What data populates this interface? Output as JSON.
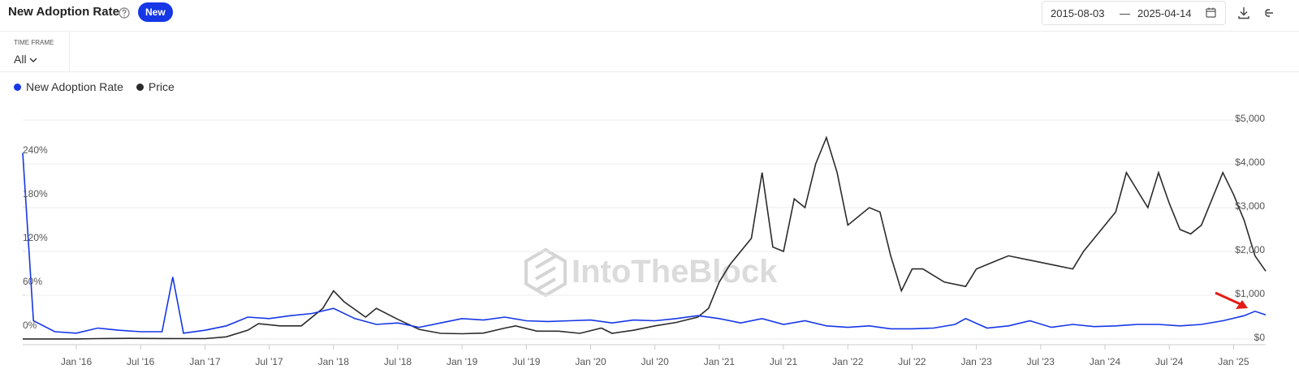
{
  "header": {
    "title": "New Adoption Rate",
    "badge": "New",
    "date_start": "2015-08-03",
    "date_end": "2025-04-14",
    "date_separator": "—",
    "timeframe_label": "TIME FRAME",
    "timeframe_value": "All"
  },
  "chart_data": {
    "type": "line",
    "watermark": "IntoTheBlock",
    "xlim": [
      "2015-08",
      "2025-04"
    ],
    "xticks": [
      {
        "value": "2016-01",
        "label": "Jan '16"
      },
      {
        "value": "2016-07",
        "label": "Jul '16"
      },
      {
        "value": "2017-01",
        "label": "Jan '17"
      },
      {
        "value": "2017-07",
        "label": "Jul '17"
      },
      {
        "value": "2018-01",
        "label": "Jan '18"
      },
      {
        "value": "2018-07",
        "label": "Jul '18"
      },
      {
        "value": "2019-01",
        "label": "Jan '19"
      },
      {
        "value": "2019-07",
        "label": "Jul '19"
      },
      {
        "value": "2020-01",
        "label": "Jan '20"
      },
      {
        "value": "2020-07",
        "label": "Jul '20"
      },
      {
        "value": "2021-01",
        "label": "Jan '21"
      },
      {
        "value": "2021-07",
        "label": "Jul '21"
      },
      {
        "value": "2022-01",
        "label": "Jan '22"
      },
      {
        "value": "2022-07",
        "label": "Jul '22"
      },
      {
        "value": "2023-01",
        "label": "Jan '23"
      },
      {
        "value": "2023-07",
        "label": "Jul '23"
      },
      {
        "value": "2024-01",
        "label": "Jan '24"
      },
      {
        "value": "2024-07",
        "label": "Jul '24"
      },
      {
        "value": "2025-01",
        "label": "Jan '25"
      }
    ],
    "ylim": [
      0,
      300
    ],
    "yticks": [
      {
        "value": 0,
        "label": "0%"
      },
      {
        "value": 60,
        "label": "60%"
      },
      {
        "value": 120,
        "label": "120%"
      },
      {
        "value": 180,
        "label": "180%"
      },
      {
        "value": 240,
        "label": "240%"
      }
    ],
    "y2lim": [
      0,
      5000
    ],
    "y2ticks": [
      {
        "value": 0,
        "label": "$0"
      },
      {
        "value": 1000,
        "label": "$1,000"
      },
      {
        "value": 2000,
        "label": "$2,000"
      },
      {
        "value": 3000,
        "label": "$3,000"
      },
      {
        "value": 4000,
        "label": "$4,000"
      },
      {
        "value": 5000,
        "label": "$5,000"
      }
    ],
    "grid": true,
    "series": [
      {
        "name": "New Adoption Rate",
        "color": "#1537e6",
        "axis": "y",
        "x": [
          "2015-08",
          "2015-09",
          "2015-11",
          "2016-01",
          "2016-03",
          "2016-05",
          "2016-07",
          "2016-09",
          "2016-10",
          "2016-11",
          "2017-01",
          "2017-03",
          "2017-05",
          "2017-07",
          "2017-09",
          "2017-11",
          "2018-01",
          "2018-03",
          "2018-05",
          "2018-07",
          "2018-09",
          "2018-11",
          "2019-01",
          "2019-03",
          "2019-05",
          "2019-07",
          "2019-09",
          "2019-11",
          "2020-01",
          "2020-03",
          "2020-05",
          "2020-07",
          "2020-09",
          "2020-11",
          "2021-01",
          "2021-03",
          "2021-05",
          "2021-07",
          "2021-09",
          "2021-11",
          "2022-01",
          "2022-03",
          "2022-05",
          "2022-07",
          "2022-09",
          "2022-11",
          "2022-12",
          "2023-02",
          "2023-04",
          "2023-06",
          "2023-08",
          "2023-10",
          "2023-12",
          "2024-02",
          "2024-04",
          "2024-06",
          "2024-08",
          "2024-10",
          "2024-12",
          "2025-02",
          "2025-03",
          "2025-04"
        ],
        "values": [
          255,
          25,
          10,
          8,
          15,
          12,
          10,
          10,
          85,
          8,
          12,
          18,
          30,
          28,
          32,
          35,
          42,
          28,
          20,
          22,
          16,
          22,
          28,
          26,
          30,
          25,
          24,
          25,
          26,
          22,
          26,
          25,
          28,
          32,
          28,
          22,
          28,
          20,
          25,
          18,
          16,
          18,
          14,
          14,
          15,
          20,
          28,
          15,
          18,
          25,
          16,
          20,
          17,
          18,
          20,
          20,
          18,
          20,
          25,
          32,
          38,
          33
        ]
      },
      {
        "name": "Price",
        "color": "#2b2b2b",
        "axis": "y2",
        "x": [
          "2015-08",
          "2015-10",
          "2016-01",
          "2016-03",
          "2016-06",
          "2016-09",
          "2017-01",
          "2017-03",
          "2017-05",
          "2017-06",
          "2017-08",
          "2017-10",
          "2017-12",
          "2018-01",
          "2018-02",
          "2018-04",
          "2018-05",
          "2018-07",
          "2018-09",
          "2018-11",
          "2019-01",
          "2019-03",
          "2019-05",
          "2019-06",
          "2019-08",
          "2019-10",
          "2019-12",
          "2020-02",
          "2020-03",
          "2020-05",
          "2020-07",
          "2020-09",
          "2020-11",
          "2020-12",
          "2021-01",
          "2021-02",
          "2021-04",
          "2021-05",
          "2021-06",
          "2021-07",
          "2021-08",
          "2021-09",
          "2021-10",
          "2021-11",
          "2021-12",
          "2022-01",
          "2022-03",
          "2022-04",
          "2022-05",
          "2022-06",
          "2022-07",
          "2022-08",
          "2022-10",
          "2022-12",
          "2023-01",
          "2023-03",
          "2023-04",
          "2023-06",
          "2023-08",
          "2023-10",
          "2023-11",
          "2023-12",
          "2024-02",
          "2024-03",
          "2024-05",
          "2024-06",
          "2024-07",
          "2024-08",
          "2024-09",
          "2024-10",
          "2024-11",
          "2024-12",
          "2025-01",
          "2025-02",
          "2025-03",
          "2025-04"
        ],
        "values": [
          1,
          1,
          1,
          10,
          14,
          12,
          10,
          50,
          200,
          350,
          300,
          300,
          700,
          1100,
          850,
          500,
          700,
          450,
          220,
          130,
          120,
          135,
          250,
          300,
          180,
          180,
          130,
          250,
          130,
          200,
          300,
          380,
          500,
          700,
          1300,
          1700,
          2300,
          3800,
          2100,
          2000,
          3200,
          3000,
          4000,
          4600,
          3800,
          2600,
          3000,
          2900,
          1900,
          1100,
          1600,
          1600,
          1300,
          1200,
          1600,
          1800,
          1900,
          1800,
          1700,
          1600,
          2000,
          2300,
          2900,
          3800,
          3000,
          3800,
          3100,
          2500,
          2400,
          2600,
          3200,
          3800,
          3300,
          2700,
          1900,
          1550
        ]
      }
    ]
  }
}
